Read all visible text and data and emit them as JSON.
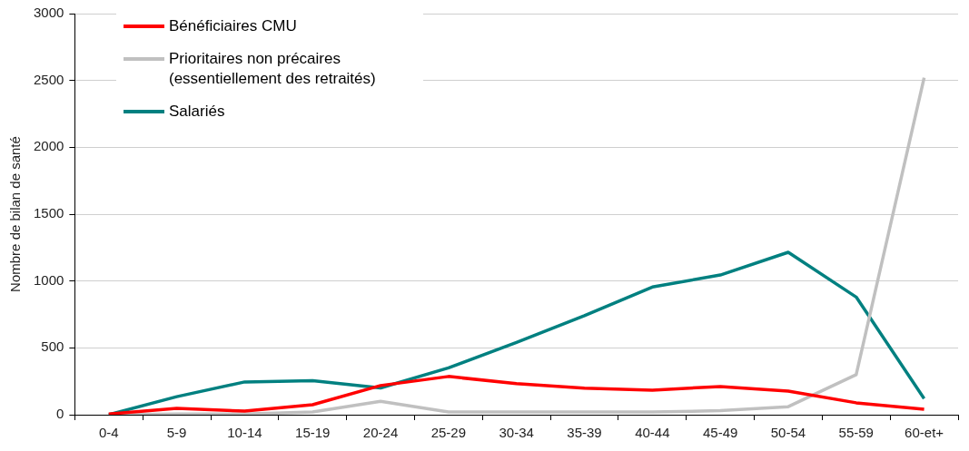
{
  "chart_data": {
    "type": "line",
    "ylabel": "Nombre de bilan de santé",
    "categories": [
      "0-4",
      "5-9",
      "10-14",
      "15-19",
      "20-24",
      "25-29",
      "30-34",
      "35-39",
      "40-44",
      "45-49",
      "50-54",
      "55-59",
      "60-et+"
    ],
    "series": [
      {
        "name": "Bénéficiaires CMU",
        "color": "#ff0000",
        "values": [
          5,
          48,
          27,
          75,
          218,
          286,
          232,
          198,
          184,
          211,
          177,
          89,
          41
        ]
      },
      {
        "name": "Prioritaires non précaires (essentiellement des retraités)",
        "color": "#c0c0c0",
        "values": [
          0,
          5,
          5,
          20,
          100,
          20,
          20,
          20,
          20,
          30,
          60,
          300,
          2520
        ]
      },
      {
        "name": "Salariés",
        "color": "#008080",
        "values": [
          0,
          135,
          245,
          255,
          200,
          350,
          540,
          740,
          955,
          1045,
          1215,
          880,
          120
        ]
      }
    ],
    "ylim": [
      0,
      3000
    ],
    "yticks": [
      0,
      500,
      1000,
      1500,
      2000,
      2500,
      3000
    ],
    "grid": "y",
    "legend": "top left",
    "marker": "none",
    "line_style": "solid"
  }
}
